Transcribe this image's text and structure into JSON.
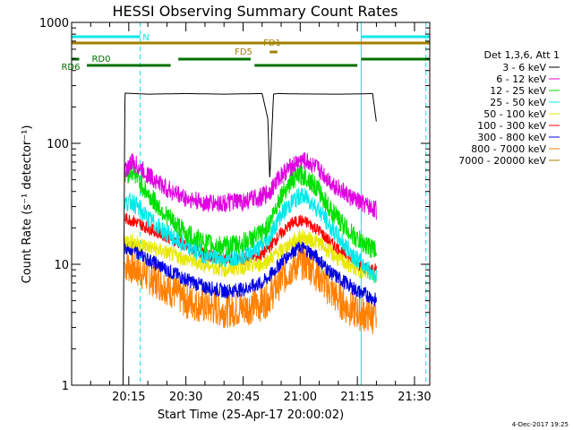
{
  "chart_data": {
    "type": "line",
    "title": "HESSI Observing Summary Count Rates",
    "xlabel": "Start Time (25-Apr-17 20:00:02)",
    "ylabel": "Count Rate (s⁻¹ detector⁻¹)",
    "y_scale": "log",
    "ylim": [
      1,
      1000
    ],
    "xlim_minutes": [
      0,
      94
    ],
    "y_ticks": [
      {
        "value": 1,
        "label": "1"
      },
      {
        "value": 10,
        "label": "10"
      },
      {
        "value": 100,
        "label": "100"
      },
      {
        "value": 1000,
        "label": "1000"
      }
    ],
    "x_ticks": [
      {
        "minute": 15,
        "label": "20:15"
      },
      {
        "minute": 30,
        "label": "20:30"
      },
      {
        "minute": 45,
        "label": "20:45"
      },
      {
        "minute": 60,
        "label": "21:00"
      },
      {
        "minute": 75,
        "label": "21:15"
      },
      {
        "minute": 90,
        "label": "21:30"
      }
    ],
    "legend": {
      "title": "Det 1,3,6, Att 1",
      "position": "right"
    },
    "series": [
      {
        "name": "3 - 6 keV",
        "color": "#000000",
        "x": [
          13.5,
          14,
          20,
          30,
          40,
          50,
          51.5,
          52,
          53,
          54,
          60,
          70,
          75,
          79,
          80
        ],
        "y": [
          1,
          260,
          255,
          258,
          255,
          258,
          160,
          50,
          255,
          258,
          256,
          255,
          256,
          258,
          150
        ]
      },
      {
        "name": "6 - 12 keV",
        "color": "#e000e0",
        "x": [
          14,
          16,
          20,
          25,
          30,
          35,
          40,
          45,
          50,
          52,
          55,
          58,
          60,
          62,
          65,
          68,
          72,
          75,
          78,
          80
        ],
        "y": [
          60,
          70,
          55,
          42,
          35,
          32,
          32,
          33,
          36,
          40,
          55,
          65,
          72,
          70,
          60,
          48,
          38,
          33,
          30,
          28
        ]
      },
      {
        "name": "12 - 25 keV",
        "color": "#00e000",
        "x": [
          14,
          16,
          20,
          25,
          30,
          35,
          40,
          45,
          50,
          52,
          55,
          58,
          60,
          62,
          65,
          68,
          72,
          75,
          78,
          80
        ],
        "y": [
          55,
          60,
          38,
          25,
          18,
          15,
          14,
          15,
          18,
          22,
          38,
          50,
          55,
          52,
          40,
          28,
          20,
          16,
          14,
          13
        ]
      },
      {
        "name": "25 - 50 keV",
        "color": "#00e8e8",
        "x": [
          14,
          16,
          20,
          25,
          30,
          35,
          40,
          45,
          50,
          52,
          55,
          58,
          60,
          62,
          65,
          68,
          72,
          75,
          78,
          80
        ],
        "y": [
          32,
          33,
          24,
          18,
          14,
          12,
          11,
          12,
          14,
          17,
          26,
          33,
          37,
          35,
          28,
          20,
          14,
          11,
          9,
          8
        ]
      },
      {
        "name": "50 - 100 keV",
        "color": "#e8e800",
        "x": [
          14,
          20,
          30,
          40,
          50,
          55,
          60,
          65,
          70,
          75,
          80
        ],
        "y": [
          16,
          14,
          11,
          9,
          10,
          13,
          17,
          15,
          11,
          9,
          8
        ]
      },
      {
        "name": "100 - 300 keV",
        "color": "#ff0000",
        "x": [
          14,
          16,
          20,
          25,
          30,
          35,
          40,
          45,
          50,
          52,
          55,
          58,
          60,
          62,
          65,
          68,
          72,
          75,
          78,
          80
        ],
        "y": [
          24,
          23,
          20,
          17,
          14,
          12,
          11,
          11,
          12,
          14,
          18,
          22,
          23,
          22,
          19,
          15,
          12,
          10,
          9,
          9
        ]
      },
      {
        "name": "300 - 800 keV",
        "color": "#0000e0",
        "x": [
          14,
          16,
          20,
          25,
          30,
          35,
          40,
          45,
          50,
          52,
          55,
          58,
          60,
          62,
          65,
          68,
          72,
          75,
          78,
          80
        ],
        "y": [
          14,
          13.5,
          11,
          9,
          7.5,
          6.5,
          6,
          6.2,
          7,
          8,
          10.5,
          13,
          14,
          13,
          11,
          8.5,
          7,
          6,
          5.5,
          5
        ]
      },
      {
        "name": "800 - 7000 keV",
        "color": "#ff8000",
        "x": [
          14,
          16,
          20,
          25,
          30,
          35,
          40,
          45,
          50,
          52,
          55,
          58,
          60,
          62,
          65,
          68,
          72,
          75,
          78,
          80
        ],
        "y": [
          10,
          9.5,
          8,
          6.5,
          5,
          4.5,
          4.2,
          4.3,
          4.8,
          5.5,
          7.5,
          9.5,
          10.5,
          10,
          8,
          6,
          4.5,
          4,
          3.8,
          3.6
        ]
      },
      {
        "name": "7000 - 20000 keV",
        "color": "#a08000",
        "x": [],
        "y": []
      }
    ],
    "observing_flags": [
      {
        "label": "N",
        "color": "#00e8e8",
        "segments": [
          [
            0,
            18
          ],
          [
            76,
            94
          ]
        ],
        "level": 1
      },
      {
        "label": "FD1",
        "color": "#a08000",
        "segments": [
          [
            0,
            94
          ]
        ],
        "level": 2
      },
      {
        "label": "FD5",
        "color": "#a08000",
        "segments": [
          [
            52,
            54
          ]
        ],
        "level": 3
      },
      {
        "label": "RD0",
        "color": "#007000",
        "segments": [
          [
            0,
            2
          ],
          [
            28,
            47
          ],
          [
            76,
            94
          ]
        ],
        "level": 4
      },
      {
        "label": "RD6",
        "color": "#007000",
        "segments": [
          [
            4,
            26
          ],
          [
            48,
            75
          ]
        ],
        "level": 5
      }
    ],
    "vertical_markers": [
      {
        "minute": 0,
        "style": "solid",
        "color": "#00e8e8"
      },
      {
        "minute": 18,
        "style": "dashed",
        "color": "#00e8e8"
      },
      {
        "minute": 76,
        "style": "solid",
        "color": "#00e8e8"
      },
      {
        "minute": 93,
        "style": "dashed",
        "color": "#00e8e8"
      }
    ]
  },
  "footer": {
    "date_stamp": "4-Dec-2017 19:25"
  }
}
